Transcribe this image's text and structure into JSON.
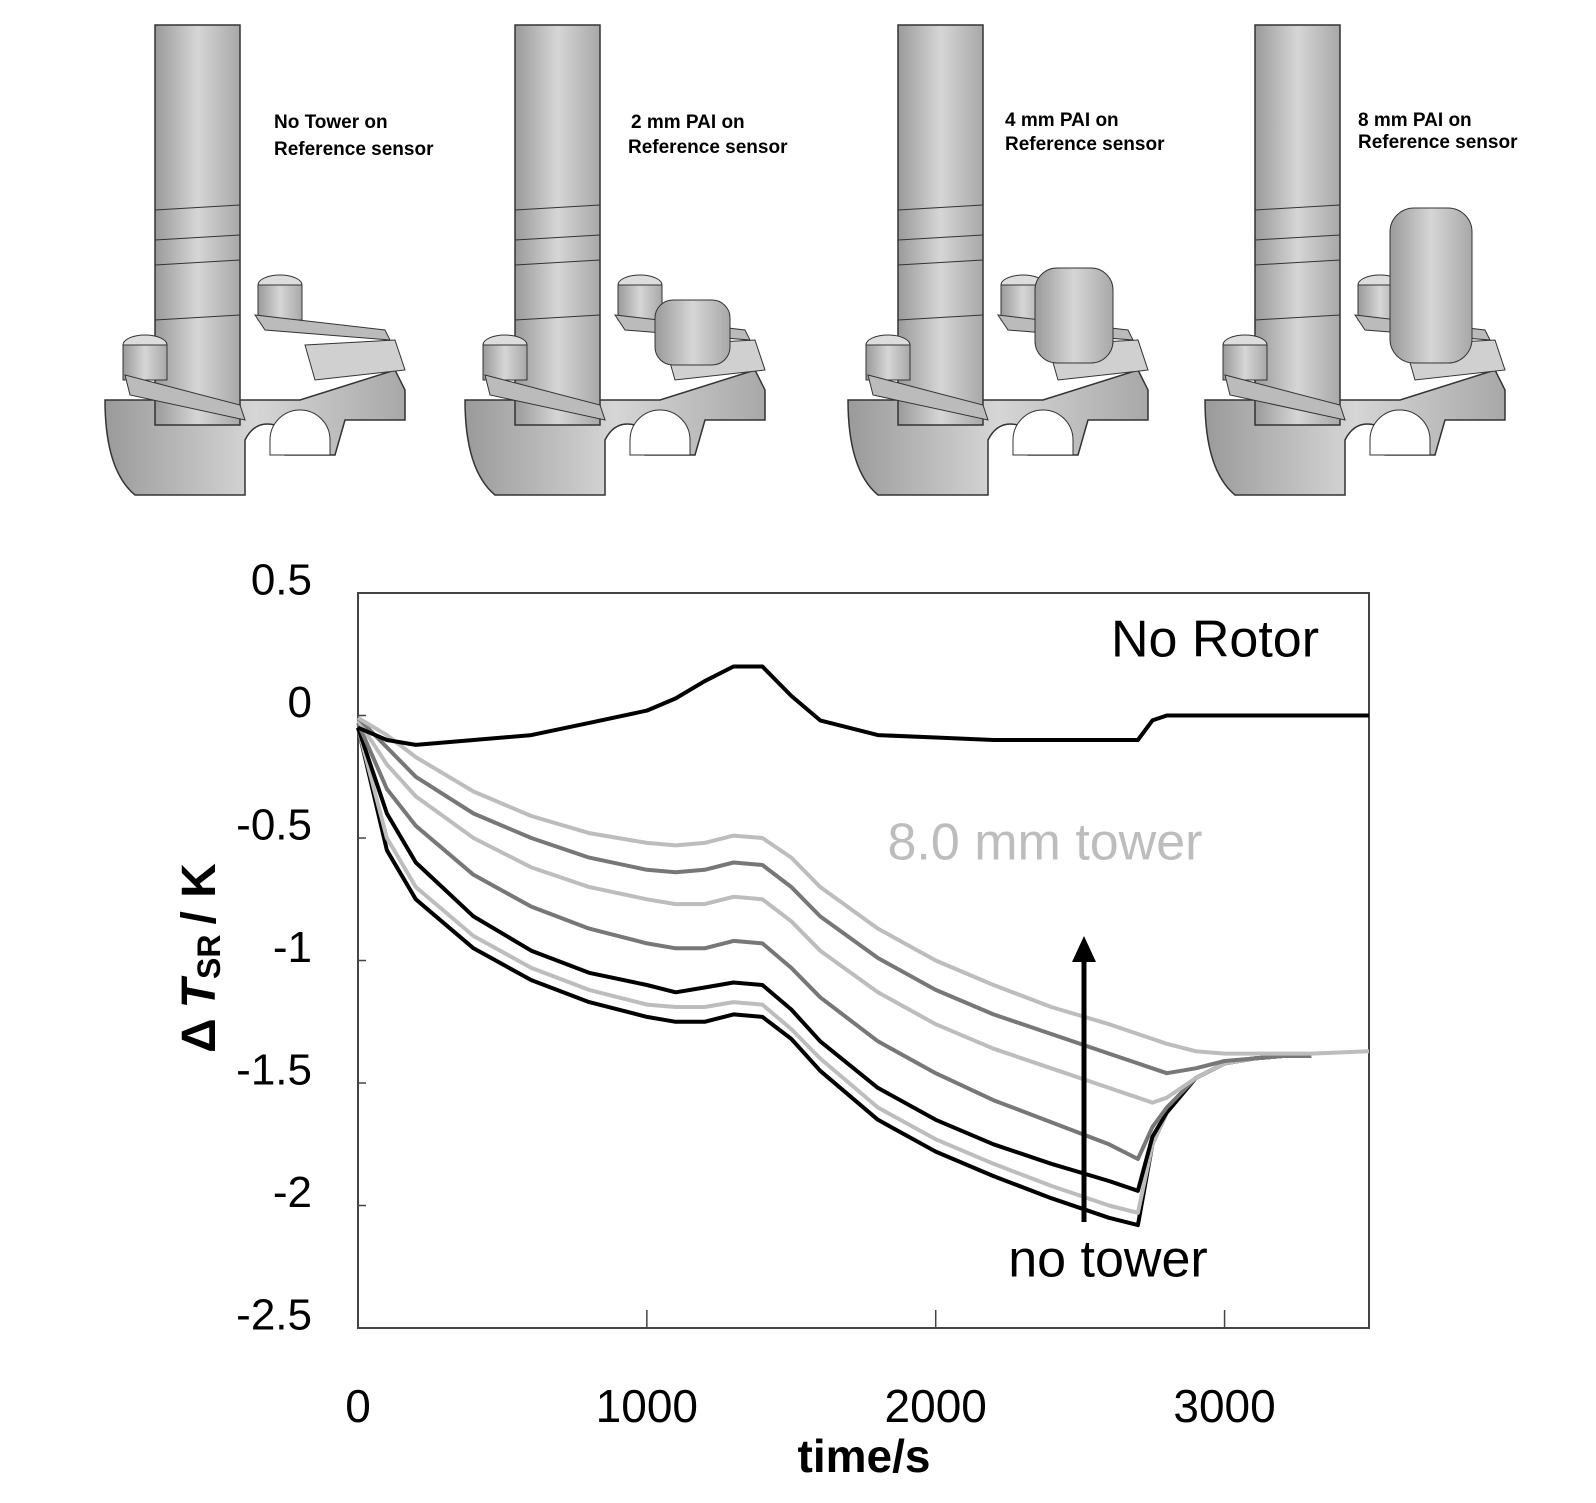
{
  "panels": [
    {
      "caption": [
        "No Tower on",
        "Reference sensor"
      ]
    },
    {
      "caption": [
        "2 mm PAI on",
        "Reference sensor"
      ]
    },
    {
      "caption": [
        "4 mm PAI on",
        "Reference sensor"
      ]
    },
    {
      "caption": [
        "8 mm PAI on",
        "Reference sensor"
      ]
    }
  ],
  "chart_data": {
    "type": "line",
    "x_label": "time/s",
    "y_label": {
      "delta": "Δ",
      "symbol": "T",
      "subscript": "SR",
      "unit": "/ K"
    },
    "annotations": [
      "No Rotor",
      "8.0 mm tower",
      "no tower"
    ],
    "xlim": [
      0,
      3500
    ],
    "xticks": [
      0,
      1000,
      2000,
      3000
    ],
    "ylim": [
      -2.5,
      0.5
    ],
    "yticks": [
      0.5,
      0,
      -0.5,
      -1,
      -1.5,
      -2,
      -2.5
    ],
    "grid": false,
    "x": [
      0,
      100,
      200,
      400,
      600,
      800,
      1000,
      1100,
      1200,
      1300,
      1400,
      1500,
      1600,
      1800,
      2000,
      2200,
      2400,
      2600,
      2700,
      2750,
      2800,
      2900,
      3000,
      3100,
      3200,
      3300,
      3500
    ],
    "series": [
      {
        "color": "#000000",
        "values": [
          -0.05,
          -0.1,
          -0.12,
          -0.1,
          -0.08,
          -0.03,
          0.02,
          0.07,
          0.14,
          0.2,
          0.2,
          0.08,
          -0.02,
          -0.08,
          -0.09,
          -0.1,
          -0.1,
          -0.1,
          -0.1,
          -0.02,
          0,
          0,
          0,
          0,
          0,
          0,
          0
        ]
      },
      {
        "color": "#bdbdbd",
        "values": [
          -0.01,
          -0.08,
          -0.17,
          -0.31,
          -0.41,
          -0.48,
          -0.52,
          -0.53,
          -0.52,
          -0.49,
          -0.5,
          -0.58,
          -0.7,
          -0.87,
          -1.0,
          -1.1,
          -1.19,
          -1.26,
          -1.3,
          -1.32,
          -1.34,
          -1.37,
          -1.38,
          -1.38,
          -1.38,
          -1.38,
          -1.37
        ]
      },
      {
        "color": "#777777",
        "values": [
          -0.01,
          -0.13,
          -0.25,
          -0.4,
          -0.5,
          -0.58,
          -0.63,
          -0.64,
          -0.63,
          -0.6,
          -0.61,
          -0.7,
          -0.82,
          -0.99,
          -1.12,
          -1.22,
          -1.3,
          -1.38,
          -1.42,
          -1.44,
          -1.46,
          -1.44,
          -1.41,
          -1.4,
          -1.39,
          -1.39,
          null
        ]
      },
      {
        "color": "#bdbdbd",
        "values": [
          -0.02,
          -0.2,
          -0.33,
          -0.5,
          -0.62,
          -0.7,
          -0.75,
          -0.77,
          -0.77,
          -0.74,
          -0.75,
          -0.84,
          -0.96,
          -1.13,
          -1.26,
          -1.36,
          -1.44,
          -1.52,
          -1.56,
          -1.58,
          -1.56,
          -1.48,
          -1.42,
          -1.4,
          -1.39,
          -1.39,
          null
        ]
      },
      {
        "color": "#777777",
        "values": [
          -0.03,
          -0.3,
          -0.45,
          -0.65,
          -0.78,
          -0.87,
          -0.93,
          -0.95,
          -0.95,
          -0.92,
          -0.93,
          -1.03,
          -1.15,
          -1.33,
          -1.46,
          -1.57,
          -1.66,
          -1.75,
          -1.81,
          -1.68,
          -1.6,
          -1.48,
          -1.42,
          -1.4,
          -1.39,
          -1.39,
          null
        ]
      },
      {
        "color": "#000000",
        "values": [
          -0.05,
          -0.4,
          -0.6,
          -0.82,
          -0.96,
          -1.05,
          -1.1,
          -1.13,
          -1.11,
          -1.09,
          -1.1,
          -1.2,
          -1.33,
          -1.52,
          -1.65,
          -1.75,
          -1.83,
          -1.9,
          -1.94,
          -1.72,
          -1.62,
          -1.48,
          -1.42,
          -1.4,
          -1.39,
          -1.39,
          null
        ]
      },
      {
        "color": "#bdbdbd",
        "values": [
          -0.05,
          -0.5,
          -0.7,
          -0.9,
          -1.03,
          -1.12,
          -1.18,
          -1.19,
          -1.19,
          -1.17,
          -1.18,
          -1.28,
          -1.4,
          -1.6,
          -1.73,
          -1.83,
          -1.92,
          -2.0,
          -2.03,
          -1.75,
          -1.62,
          -1.48,
          -1.42,
          -1.4,
          -1.39,
          -1.39,
          null
        ]
      },
      {
        "color": "#000000",
        "values": [
          -0.05,
          -0.55,
          -0.75,
          -0.95,
          -1.08,
          -1.17,
          -1.23,
          -1.25,
          -1.25,
          -1.22,
          -1.23,
          -1.32,
          -1.45,
          -1.65,
          -1.78,
          -1.88,
          -1.97,
          -2.05,
          -2.08,
          -1.75,
          -1.62,
          -1.48,
          -1.42,
          -1.4,
          -1.39,
          -1.39,
          null
        ]
      }
    ]
  }
}
